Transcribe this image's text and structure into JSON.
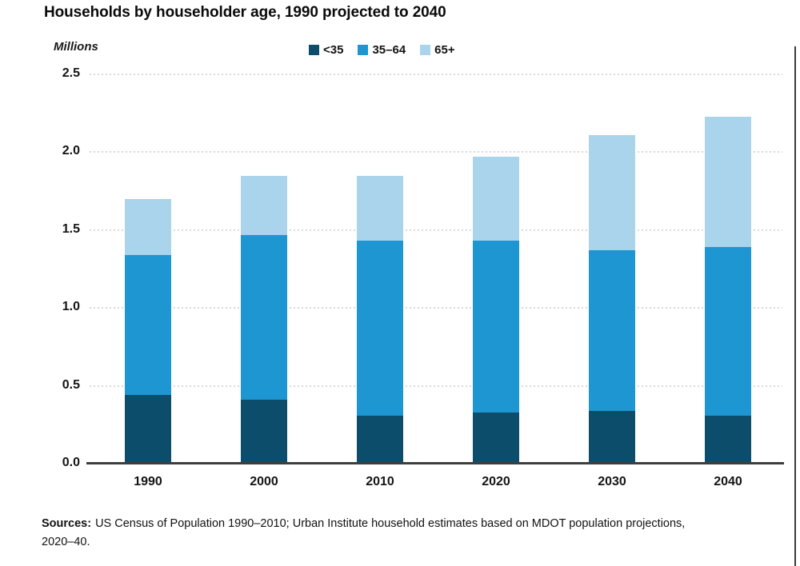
{
  "title": "Households by householder age, 1990 projected to 2040",
  "y_axis_unit": "Millions",
  "legend": [
    {
      "label": "<35",
      "color": "#0d4d6c"
    },
    {
      "label": "35–64",
      "color": "#1e96d2"
    },
    {
      "label": "65+",
      "color": "#a9d4ec"
    }
  ],
  "source": {
    "label": "Sources:",
    "line1": "US Census of Population 1990–2010; Urban Institute household estimates based on MDOT population projections,",
    "line2": "2020–40."
  },
  "chart_data": {
    "type": "bar",
    "stacked": true,
    "title": "Households by householder age, 1990 projected to 2040",
    "ylabel": "Millions",
    "xlabel": "",
    "ylim": [
      0,
      2.5
    ],
    "yticks": [
      0,
      0.5,
      1,
      1.5,
      2,
      2.5
    ],
    "ytick_labels": [
      "0.0",
      "0.5",
      "1.0",
      "1.5",
      "2.0",
      "2.5"
    ],
    "grid": "horizontal-dotted",
    "legend_position": "top-center",
    "categories": [
      "1990",
      "2000",
      "2010",
      "2020",
      "2030",
      "2040"
    ],
    "series": [
      {
        "name": "<35",
        "color": "#0d4d6c",
        "values": [
          0.44,
          0.41,
          0.31,
          0.33,
          0.34,
          0.31
        ]
      },
      {
        "name": "35–64",
        "color": "#1e96d2",
        "values": [
          0.9,
          1.06,
          1.12,
          1.1,
          1.03,
          1.08
        ]
      },
      {
        "name": "65+",
        "color": "#a9d4ec",
        "values": [
          0.36,
          0.38,
          0.42,
          0.54,
          0.74,
          0.84
        ]
      }
    ],
    "totals": [
      1.7,
      1.85,
      1.85,
      1.97,
      2.11,
      2.23
    ]
  }
}
